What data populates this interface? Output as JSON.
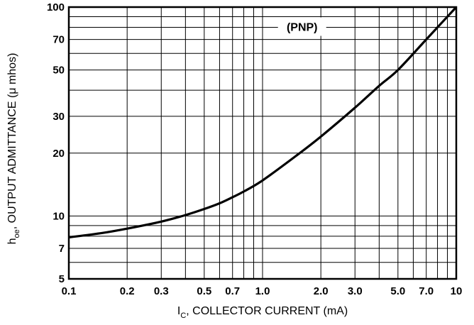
{
  "chart_data": {
    "type": "line",
    "x_scale": "log",
    "y_scale": "log",
    "xlim": [
      0.1,
      10
    ],
    "ylim": [
      5,
      100
    ],
    "xlabel": {
      "main": "I",
      "sub": "C",
      "rest": ", COLLECTOR CURRENT (mA)"
    },
    "ylabel": {
      "main": "h",
      "sub": "oe",
      "rest": ", OUTPUT ADMITTANCE (μ mhos)"
    },
    "x_ticks": [
      {
        "value": 0.1,
        "label": "0.1"
      },
      {
        "value": 0.2,
        "label": "0.2"
      },
      {
        "value": 0.3,
        "label": "0.3"
      },
      {
        "value": 0.5,
        "label": "0.5"
      },
      {
        "value": 0.7,
        "label": "0.7"
      },
      {
        "value": 1.0,
        "label": "1.0"
      },
      {
        "value": 2.0,
        "label": "2.0"
      },
      {
        "value": 3.0,
        "label": "3.0"
      },
      {
        "value": 5.0,
        "label": "5.0"
      },
      {
        "value": 7.0,
        "label": "7.0"
      },
      {
        "value": 10,
        "label": "10"
      }
    ],
    "y_ticks": [
      {
        "value": 5,
        "label": "5"
      },
      {
        "value": 7,
        "label": "7"
      },
      {
        "value": 10,
        "label": "10"
      },
      {
        "value": 20,
        "label": "20"
      },
      {
        "value": 30,
        "label": "30"
      },
      {
        "value": 50,
        "label": "50"
      },
      {
        "value": 70,
        "label": "70"
      },
      {
        "value": 100,
        "label": "100"
      }
    ],
    "grid": true,
    "annotation": "(PNP)",
    "series": [
      {
        "color": "#000000",
        "x": [
          0.1,
          0.15,
          0.2,
          0.3,
          0.4,
          0.5,
          0.6,
          0.7,
          0.8,
          1.0,
          1.5,
          2.0,
          3.0,
          4.0,
          5.0,
          7.0,
          10
        ],
        "y": [
          7.9,
          8.3,
          8.7,
          9.4,
          10.1,
          10.8,
          11.5,
          12.3,
          13.1,
          14.8,
          19.5,
          24,
          33,
          42,
          50,
          70,
          100
        ]
      }
    ]
  }
}
